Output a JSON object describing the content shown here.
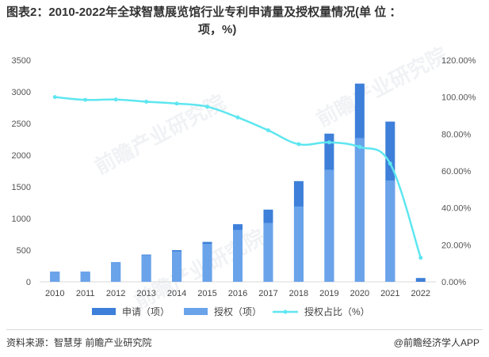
{
  "title": {
    "line1": "图表2：2010-2022年全球智慧展览馆行业专利申请量及授权量情况(单 位 ：",
    "line2": "项，%)"
  },
  "footer": {
    "source": "资料来源：智慧芽 前瞻产业研究院",
    "brand": "@前瞻经济学人APP"
  },
  "watermark": "前瞻产业研究院",
  "colors": {
    "apply": "#3D7FD9",
    "grant": "#6AA3EA",
    "ratio": "#5EE6F0"
  },
  "chart_data": {
    "type": "bar",
    "categories": [
      "2010",
      "2011",
      "2012",
      "2013",
      "2014",
      "2015",
      "2016",
      "2017",
      "2018",
      "2019",
      "2020",
      "2021",
      "2022"
    ],
    "series": [
      {
        "name": "申请（项）",
        "type": "bar",
        "axis": "left",
        "values": [
          160,
          160,
          310,
          430,
          500,
          630,
          910,
          1140,
          1590,
          2340,
          3130,
          2530,
          60
        ]
      },
      {
        "name": "授权（项）",
        "type": "bar",
        "axis": "left",
        "values": [
          160,
          160,
          310,
          420,
          480,
          600,
          820,
          930,
          1190,
          1770,
          2270,
          1600,
          0
        ]
      },
      {
        "name": "授权占比（%）",
        "type": "line",
        "axis": "right",
        "values": [
          100,
          98.5,
          98.7,
          97.5,
          96.5,
          94.8,
          89,
          82,
          74.5,
          75.5,
          73,
          64,
          13
        ]
      }
    ],
    "y_left": {
      "min": 0,
      "max": 3500,
      "ticks": [
        "0",
        "500",
        "1000",
        "1500",
        "2000",
        "2500",
        "3000",
        "3500"
      ]
    },
    "y_right": {
      "min": 0,
      "max": 120,
      "ticks": [
        "0.00%",
        "20.00%",
        "40.00%",
        "60.00%",
        "80.00%",
        "100.00%",
        "120.00%"
      ]
    },
    "legend_position": "bottom"
  }
}
